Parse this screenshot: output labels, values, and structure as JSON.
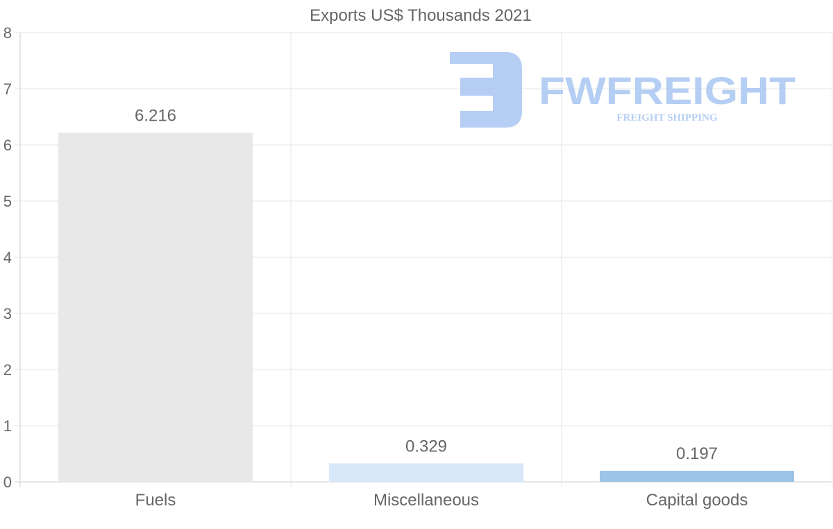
{
  "chart_data": {
    "type": "bar",
    "title": "Exports US$ Thousands 2021",
    "categories": [
      "Fuels",
      "Miscellaneous",
      "Capital goods"
    ],
    "values": [
      6.216,
      0.329,
      0.197
    ],
    "value_labels": [
      "6.216",
      "0.329",
      "0.197"
    ],
    "colors": [
      "#e8e8e8",
      "#d9e8f9",
      "#9dc3e6"
    ],
    "xlabel": "",
    "ylabel": "",
    "ylim": [
      0,
      8
    ],
    "yticks": [
      "0",
      "1",
      "2",
      "3",
      "4",
      "5",
      "6",
      "7",
      "8"
    ],
    "grid": true,
    "legend": "none"
  },
  "watermark": {
    "brand": "FWFREIGHT",
    "tagline": "FREIGHT SHIPPING",
    "color": "#a9c6f2"
  }
}
